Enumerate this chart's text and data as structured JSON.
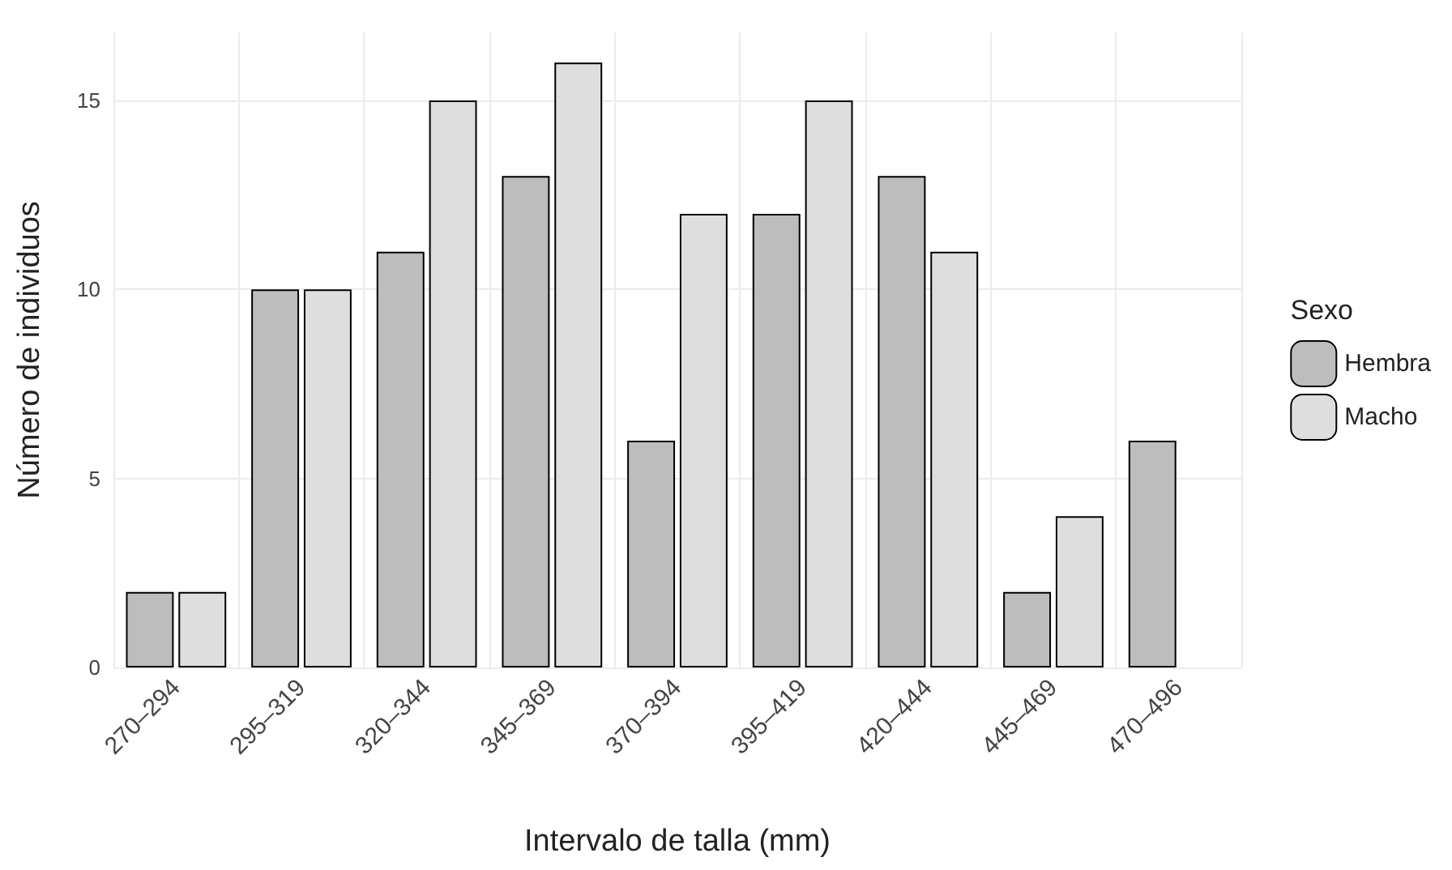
{
  "chart_data": {
    "type": "bar",
    "xlabel": "Intervalo de talla (mm)",
    "ylabel": "Número de individuos",
    "legend_title": "Sexo",
    "categories": [
      "270–294",
      "295–319",
      "320–344",
      "345–369",
      "370–394",
      "395–419",
      "420–444",
      "445–469",
      "470–496"
    ],
    "series": [
      {
        "name": "Hembra",
        "color": "#bdbdbd",
        "values": [
          2,
          10,
          11,
          13,
          6,
          12,
          13,
          2,
          6
        ]
      },
      {
        "name": "Macho",
        "color": "#dedede",
        "values": [
          2,
          10,
          15,
          16,
          12,
          15,
          11,
          4,
          null
        ]
      }
    ],
    "ylim": [
      0,
      16.8
    ],
    "yticks": [
      0,
      5,
      10,
      15
    ],
    "grid": true,
    "legend": "right"
  }
}
